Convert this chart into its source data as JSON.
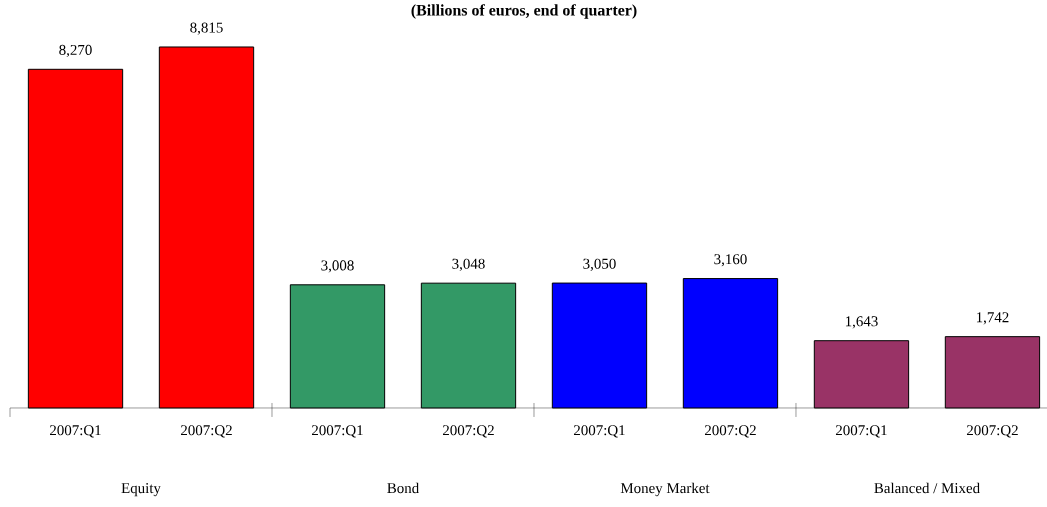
{
  "chart_data": {
    "type": "bar",
    "title": "(Billions of euros, end of quarter)",
    "categories": [
      "2007:Q1",
      "2007:Q2",
      "2007:Q1",
      "2007:Q2",
      "2007:Q1",
      "2007:Q2",
      "2007:Q1",
      "2007:Q2"
    ],
    "values": [
      8270,
      8815,
      3008,
      3048,
      3050,
      3160,
      1643,
      1742
    ],
    "value_labels": [
      "8,270",
      "8,815",
      "3,008",
      "3,048",
      "3,050",
      "3,160",
      "1,643",
      "1,742"
    ],
    "colors": [
      "#ff0000",
      "#ff0000",
      "#339966",
      "#339966",
      "#0000ff",
      "#0000ff",
      "#993366",
      "#993366"
    ],
    "annotations": [
      "Equity",
      "Bond",
      "Money Market",
      "Balanced / Mixed"
    ],
    "grid": false
  }
}
